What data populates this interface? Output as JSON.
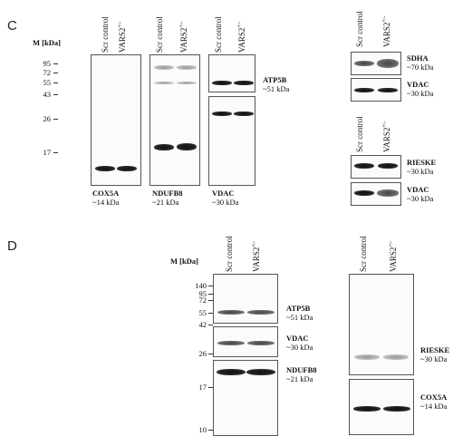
{
  "figure": {
    "panel_c": {
      "letter": "C",
      "mw_header": "M [kDa]",
      "lanes": [
        "Scr control",
        "VARS2"
      ],
      "lane_sup": "+/-",
      "markers": [
        "95",
        "72",
        "55",
        "43",
        "26",
        "17"
      ],
      "labels": {
        "cox5a": {
          "name": "COX5A",
          "size": "~14 kDa"
        },
        "ndufb8": {
          "name": "NDUFB8",
          "size": "~21 kDa"
        },
        "vdac": {
          "name": "VDAC",
          "size": "~30 kDa"
        },
        "atp5b": {
          "name": "ATP5B",
          "size": "~51 kDa"
        },
        "sdha": {
          "name": "SDHA",
          "size": "~70 kDa"
        },
        "vdac_r1": {
          "name": "VDAC",
          "size": "~30 kDa"
        },
        "rieske": {
          "name": "RIESKE",
          "size": "~30 kDa"
        },
        "vdac_r2": {
          "name": "VDAC",
          "size": "~30 kDa"
        }
      }
    },
    "panel_d": {
      "letter": "D",
      "mw_header": "M [kDa]",
      "lanes": [
        "Scr control",
        "VARS2"
      ],
      "lane_sup": "+/-",
      "markers": [
        "140",
        "95",
        "72",
        "55",
        "42",
        "26",
        "17",
        "10"
      ],
      "labels": {
        "atp5b": {
          "name": "ATP5B",
          "size": "~51 kDa"
        },
        "vdac": {
          "name": "VDAC",
          "size": "~30 kDa"
        },
        "ndufb8": {
          "name": "NDUFB8",
          "size": "~21 kDa"
        },
        "rieske": {
          "name": "RIESKE",
          "size": "~30 kDa"
        },
        "cox5a": {
          "name": "COX5A",
          "size": "~14 kDa"
        }
      }
    }
  }
}
